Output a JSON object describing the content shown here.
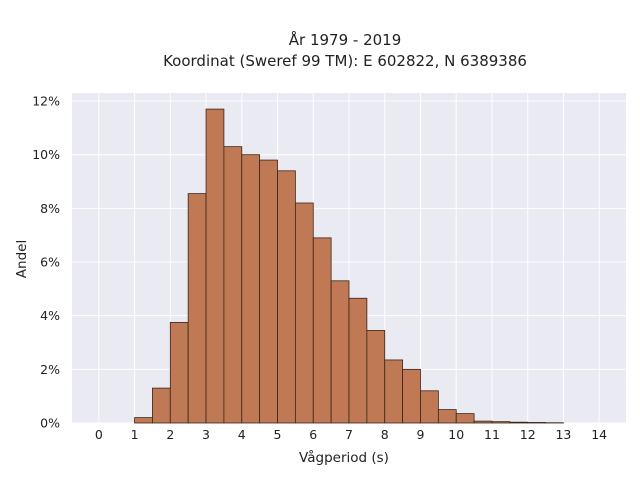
{
  "chart_data": {
    "type": "bar",
    "title": "År 1979 - 2019",
    "subtitle": "Koordinat (Sweref 99 TM): E 602822, N 6389386",
    "xlabel": "Vågperiod (s)",
    "ylabel": "Andel",
    "xlim": [
      -0.75,
      14.75
    ],
    "ylim": [
      0,
      12.3
    ],
    "x_ticks": [
      0,
      1,
      2,
      3,
      4,
      5,
      6,
      7,
      8,
      9,
      10,
      11,
      12,
      13,
      14
    ],
    "y_ticks": [
      0,
      2,
      4,
      6,
      8,
      10,
      12
    ],
    "y_tick_labels": [
      "0%",
      "2%",
      "4%",
      "6%",
      "8%",
      "10%",
      "12%"
    ],
    "bin_width": 0.5,
    "bin_starts": [
      1.0,
      1.5,
      2.0,
      2.5,
      3.0,
      3.5,
      4.0,
      4.5,
      5.0,
      5.5,
      6.0,
      6.5,
      7.0,
      7.5,
      8.0,
      8.5,
      9.0,
      9.5,
      10.0,
      10.5,
      11.0,
      11.5,
      12.0,
      12.5
    ],
    "values": [
      0.2,
      1.3,
      3.75,
      8.55,
      11.7,
      10.3,
      10.0,
      9.8,
      9.4,
      8.2,
      6.9,
      5.3,
      4.65,
      3.45,
      2.35,
      2.0,
      1.2,
      0.5,
      0.35,
      0.07,
      0.05,
      0.03,
      0.02,
      0.01
    ],
    "grid": true,
    "colors": {
      "bar": "#bf7a55",
      "edge": "#3a2418",
      "background": "#eaeaf2",
      "grid": "#ffffff"
    }
  }
}
